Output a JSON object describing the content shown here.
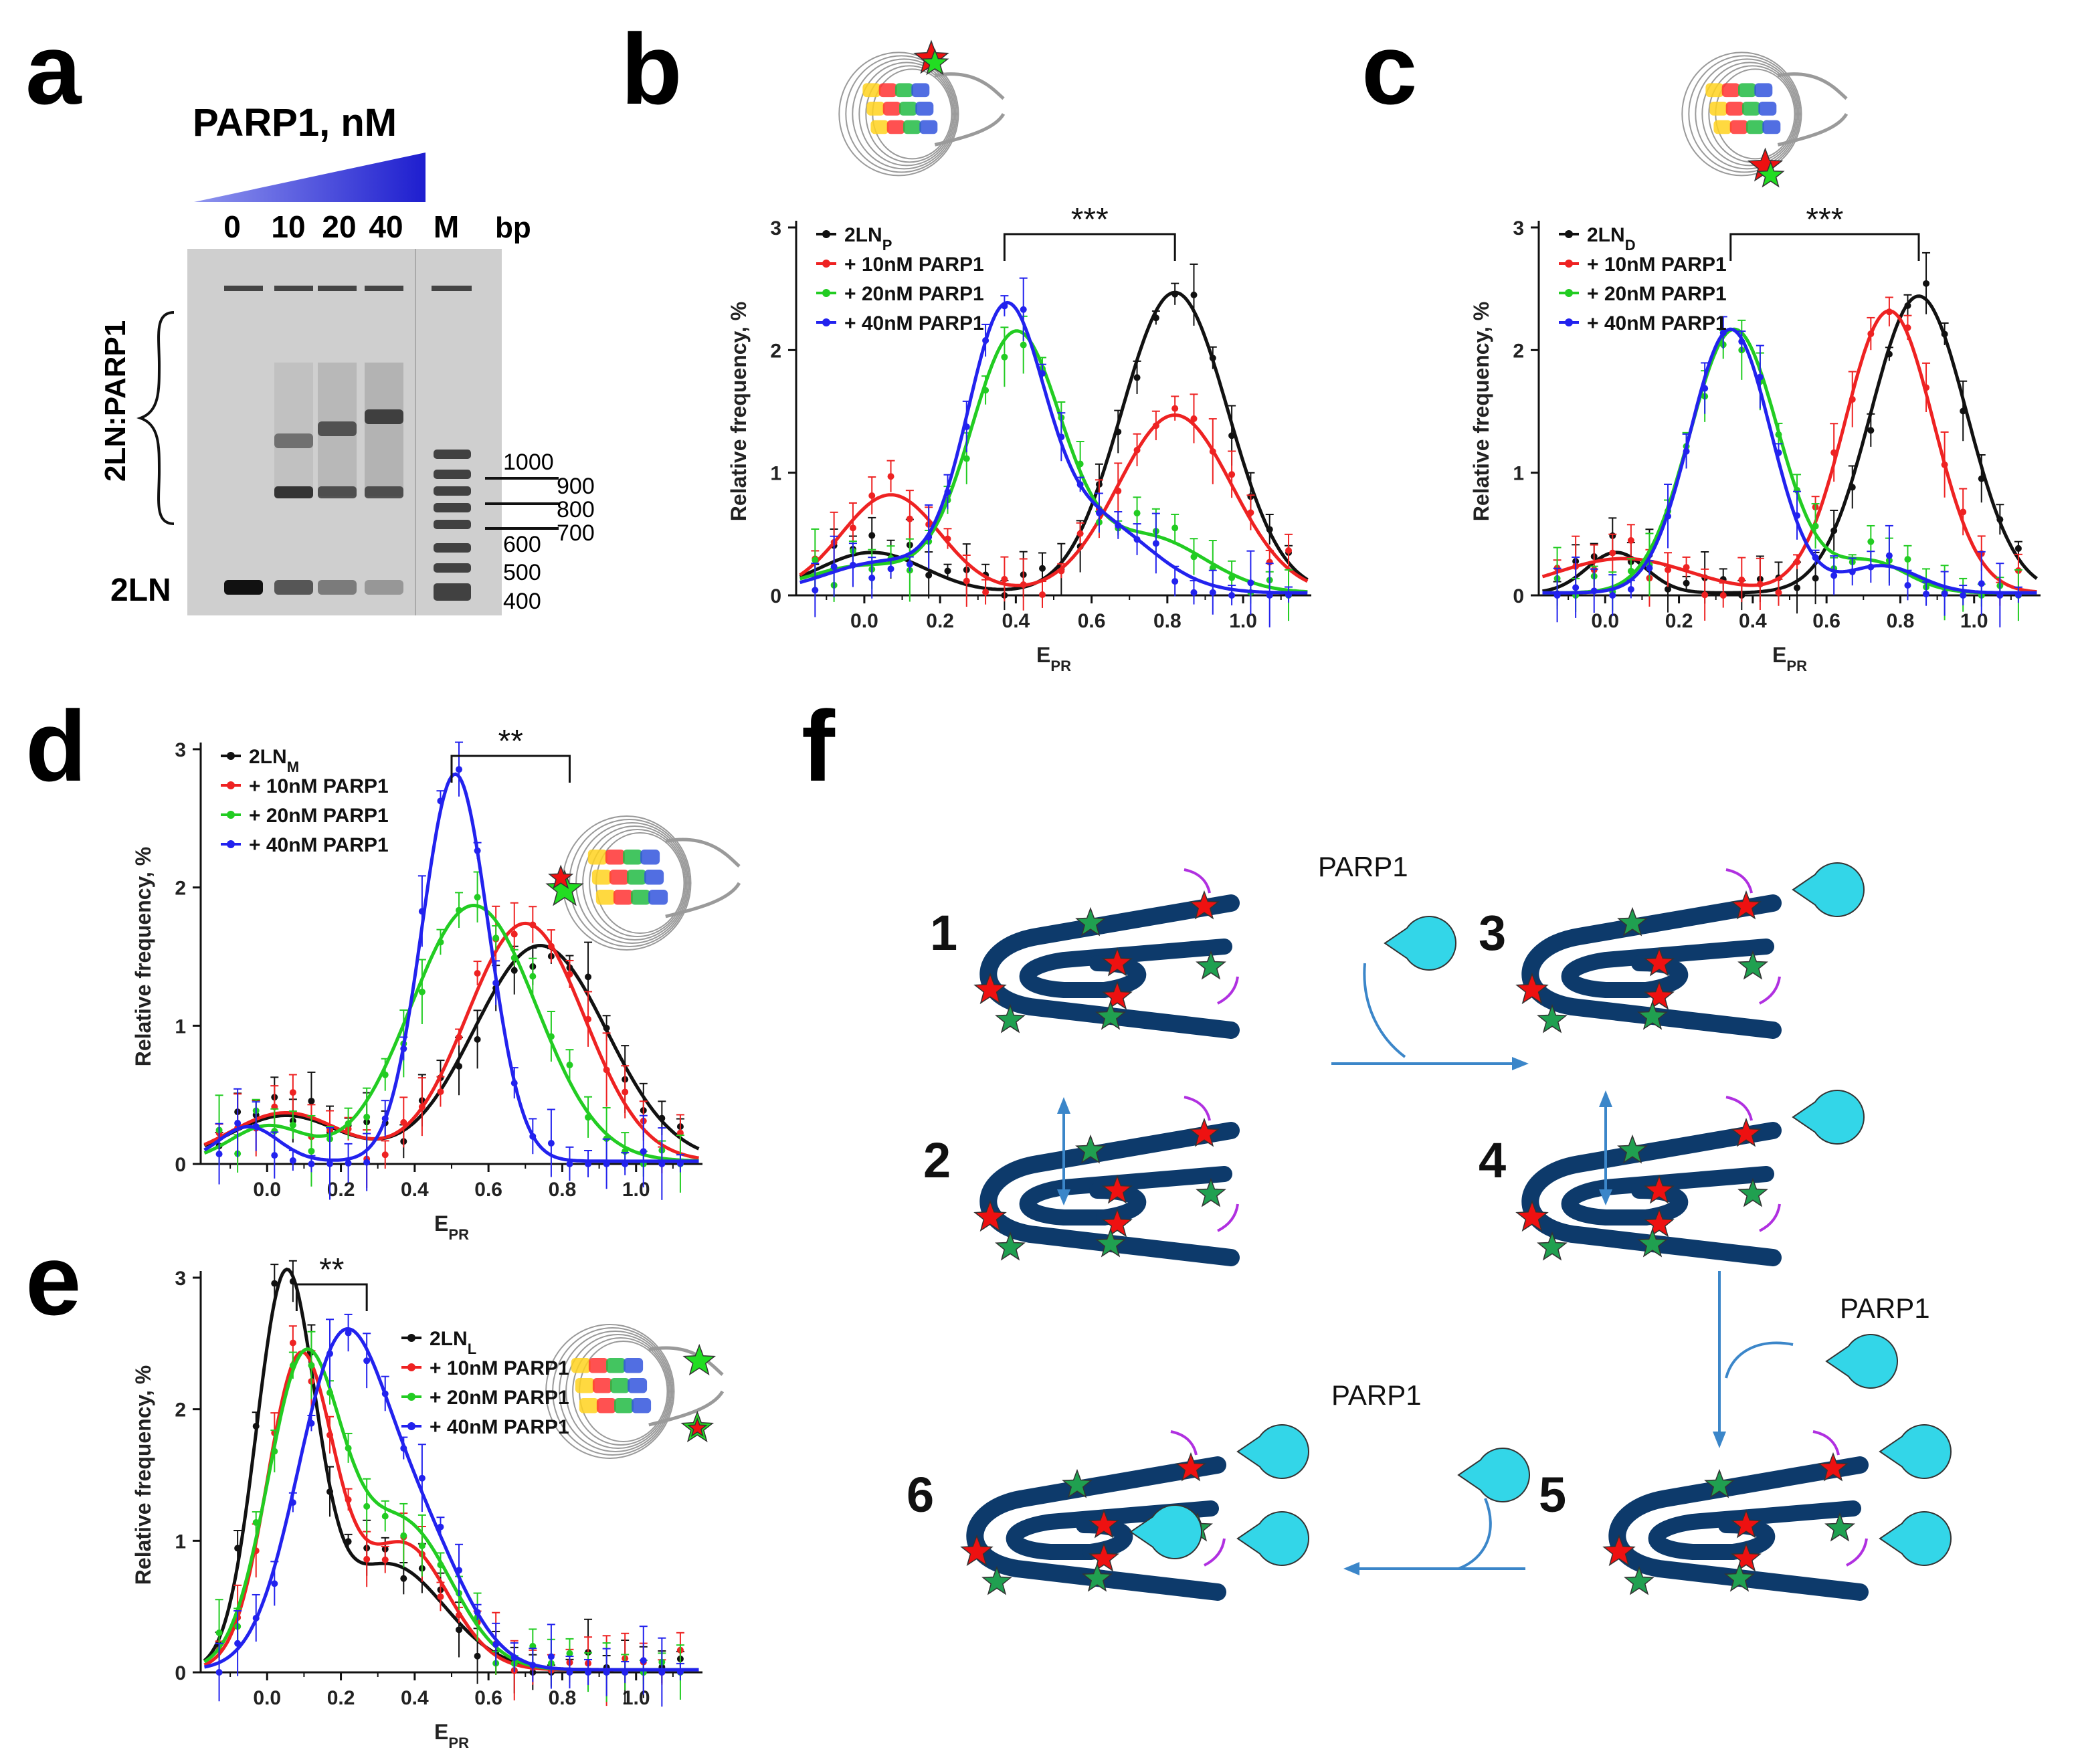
{
  "panels": {
    "a": {
      "label": "a",
      "title": "PARP1, nM",
      "lanes": [
        "0",
        "10",
        "20",
        "40",
        "M"
      ],
      "bp_header": "bp",
      "brace_label": "2LN:PARP1",
      "free_label": "2LN",
      "ladder": [
        "1000",
        "900",
        "800",
        "700",
        "600",
        "500",
        "400"
      ],
      "gel_bands": {
        "free_nucleosome_fraction": [
          1.0,
          0.55,
          0.3,
          0.12
        ],
        "complex_fraction": [
          0.0,
          0.45,
          0.7,
          0.88
        ]
      }
    },
    "b": {
      "label": "b"
    },
    "c": {
      "label": "c"
    },
    "d": {
      "label": "d"
    },
    "e": {
      "label": "e"
    },
    "f": {
      "label": "f"
    }
  },
  "colors": {
    "black": "#111111",
    "red": "#ee2222",
    "green": "#22cc22",
    "blue": "#2222ee",
    "navy": "#0d3a6b",
    "cyan": "#33d6e8",
    "violet": "#b030e0",
    "arrow": "#3b86c9",
    "star_red": "#ee1111",
    "star_green": "#20a050"
  },
  "chart_data": [
    {
      "panel": "b",
      "type": "scatter",
      "xlabel": "E_PR",
      "ylabel": "Relative frequency, %",
      "xlim": [
        -0.18,
        1.18
      ],
      "ylim": [
        0,
        3
      ],
      "xticks": [
        "0.0",
        "0.2",
        "0.4",
        "0.6",
        "0.8",
        "1.0"
      ],
      "yticks": [
        "0",
        "1",
        "2",
        "3"
      ],
      "legend": [
        "2LN_P",
        "+ 10nM PARP1",
        "+ 20nM PARP1",
        "+ 40nM PARP1"
      ],
      "significance": "***",
      "bracket_x": [
        0.37,
        0.82
      ],
      "series": [
        {
          "name": "2LN_P",
          "color": "#111111",
          "peaks": [
            [
              0.82,
              2.45,
              0.14
            ],
            [
              0.02,
              0.33,
              0.14
            ]
          ]
        },
        {
          "name": "+ 10nM PARP1",
          "color": "#ee2222",
          "peaks": [
            [
              0.82,
              1.45,
              0.15
            ],
            [
              0.07,
              0.8,
              0.13
            ]
          ]
        },
        {
          "name": "+ 20nM PARP1",
          "color": "#22cc22",
          "peaks": [
            [
              0.4,
              2.1,
              0.12
            ],
            [
              0.75,
              0.45,
              0.15
            ],
            [
              0.0,
              0.22,
              0.15
            ]
          ]
        },
        {
          "name": "+ 40nM PARP1",
          "color": "#2222ee",
          "peaks": [
            [
              0.37,
              2.15,
              0.1
            ],
            [
              0.6,
              0.6,
              0.15
            ],
            [
              0.05,
              0.25,
              0.15
            ]
          ]
        }
      ]
    },
    {
      "panel": "c",
      "type": "scatter",
      "xlabel": "E_PR",
      "ylabel": "Relative frequency, %",
      "xlim": [
        -0.18,
        1.18
      ],
      "ylim": [
        0,
        3
      ],
      "xticks": [
        "0.0",
        "0.2",
        "0.4",
        "0.6",
        "0.8",
        "1.0"
      ],
      "yticks": [
        "0",
        "1",
        "2",
        "3"
      ],
      "legend": [
        "2LN_D",
        "+ 10nM PARP1",
        "+ 20nM PARP1",
        "+ 40nM PARP1"
      ],
      "significance": "***",
      "bracket_x": [
        0.34,
        0.85
      ],
      "series": [
        {
          "name": "2LN_D",
          "color": "#111111",
          "peaks": [
            [
              0.85,
              2.42,
              0.13
            ],
            [
              0.03,
              0.33,
              0.08
            ]
          ]
        },
        {
          "name": "+ 10nM PARP1",
          "color": "#ee2222",
          "peaks": [
            [
              0.77,
              2.3,
              0.12
            ],
            [
              0.05,
              0.28,
              0.18
            ]
          ]
        },
        {
          "name": "+ 20nM PARP1",
          "color": "#22cc22",
          "peaks": [
            [
              0.35,
              2.15,
              0.12
            ],
            [
              0.72,
              0.25,
              0.1
            ]
          ]
        },
        {
          "name": "+ 40nM PARP1",
          "color": "#2222ee",
          "peaks": [
            [
              0.34,
              2.15,
              0.11
            ],
            [
              0.75,
              0.22,
              0.1
            ]
          ]
        }
      ]
    },
    {
      "panel": "d",
      "type": "scatter",
      "xlabel": "E_PR",
      "ylabel": "Relative frequency, %",
      "xlim": [
        -0.18,
        1.18
      ],
      "ylim": [
        0,
        3
      ],
      "xticks": [
        "0.0",
        "0.2",
        "0.4",
        "0.6",
        "0.8",
        "1.0"
      ],
      "yticks": [
        "0",
        "1",
        "2",
        "3"
      ],
      "legend": [
        "2LN_M",
        "+ 10nM PARP1",
        "+ 20nM PARP1",
        "+ 40nM PARP1"
      ],
      "significance": "**",
      "bracket_x": [
        0.5,
        0.82
      ],
      "series": [
        {
          "name": "2LN_M",
          "color": "#111111",
          "peaks": [
            [
              0.74,
              1.56,
              0.18
            ],
            [
              0.05,
              0.33,
              0.15
            ]
          ]
        },
        {
          "name": "+ 10nM PARP1",
          "color": "#ee2222",
          "peaks": [
            [
              0.7,
              1.72,
              0.16
            ],
            [
              0.05,
              0.35,
              0.15
            ]
          ]
        },
        {
          "name": "+ 20nM PARP1",
          "color": "#22cc22",
          "peaks": [
            [
              0.56,
              1.85,
              0.17
            ],
            [
              0.0,
              0.25,
              0.1
            ]
          ]
        },
        {
          "name": "+ 40nM PARP1",
          "color": "#2222ee",
          "peaks": [
            [
              0.51,
              2.8,
              0.09
            ],
            [
              -0.05,
              0.25,
              0.08
            ]
          ]
        }
      ]
    },
    {
      "panel": "e",
      "type": "scatter",
      "xlabel": "E_PR",
      "ylabel": "Relative frequency, %",
      "xlim": [
        -0.18,
        1.18
      ],
      "ylim": [
        0,
        3
      ],
      "xticks": [
        "0.0",
        "0.2",
        "0.4",
        "0.6",
        "0.8",
        "1.0"
      ],
      "yticks": [
        "0",
        "1",
        "2",
        "3"
      ],
      "legend": [
        "2LN_L",
        "+ 10nM PARP1",
        "+ 20nM PARP1",
        "+ 40nM PARP1"
      ],
      "significance": "**",
      "bracket_x": [
        0.08,
        0.27
      ],
      "series": [
        {
          "name": "2LN_L",
          "color": "#111111",
          "peaks": [
            [
              0.05,
              2.9,
              0.08
            ],
            [
              0.33,
              0.8,
              0.15
            ]
          ]
        },
        {
          "name": "+ 10nM PARP1",
          "color": "#ee2222",
          "peaks": [
            [
              0.09,
              2.35,
              0.09
            ],
            [
              0.37,
              0.95,
              0.12
            ]
          ]
        },
        {
          "name": "+ 20nM PARP1",
          "color": "#22cc22",
          "peaks": [
            [
              0.1,
              2.3,
              0.1
            ],
            [
              0.37,
              1.1,
              0.13
            ]
          ]
        },
        {
          "name": "+ 40nM PARP1",
          "color": "#2222ee",
          "peaks": [
            [
              0.2,
              2.4,
              0.12
            ],
            [
              0.42,
              0.9,
              0.12
            ]
          ]
        }
      ]
    }
  ],
  "scheme": {
    "states": [
      "1",
      "2",
      "3",
      "4",
      "5",
      "6"
    ],
    "protein_label": "PARP1"
  }
}
